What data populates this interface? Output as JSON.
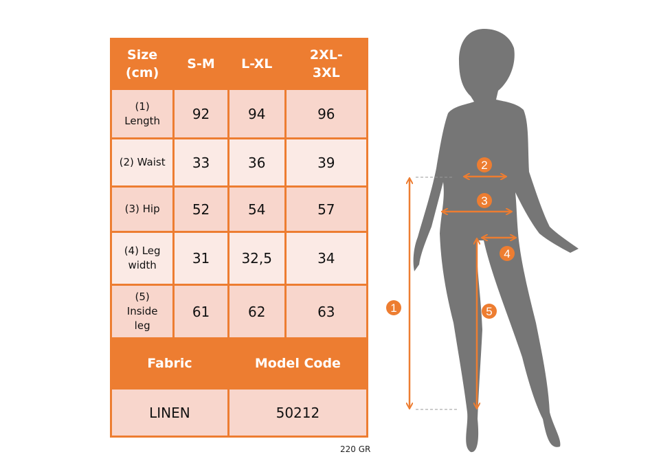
{
  "table": {
    "header": [
      "Size (cm)",
      "S-M",
      "L-XL",
      "2XL-3XL"
    ],
    "rows": [
      {
        "label": "(1) Length",
        "values": [
          "92",
          "94",
          "96"
        ]
      },
      {
        "label": "(2) Waist",
        "values": [
          "33",
          "36",
          "39"
        ]
      },
      {
        "label": "(3) Hip",
        "values": [
          "52",
          "54",
          "57"
        ]
      },
      {
        "label": "(4) Leg width",
        "values": [
          "31",
          "32,5",
          "34"
        ]
      },
      {
        "label": "(5) Inside leg",
        "values": [
          "61",
          "62",
          "63"
        ]
      }
    ],
    "fabric_header": "Fabric",
    "model_header": "Model Code",
    "fabric": "LINEN",
    "model_code": "50212"
  },
  "weight": "220 GR",
  "markers": [
    "1",
    "2",
    "3",
    "4",
    "5"
  ],
  "colors": {
    "accent": "#ed7d31",
    "row_dark": "#f8d6cc",
    "row_light": "#fbeae5",
    "silhouette": "#767676"
  }
}
